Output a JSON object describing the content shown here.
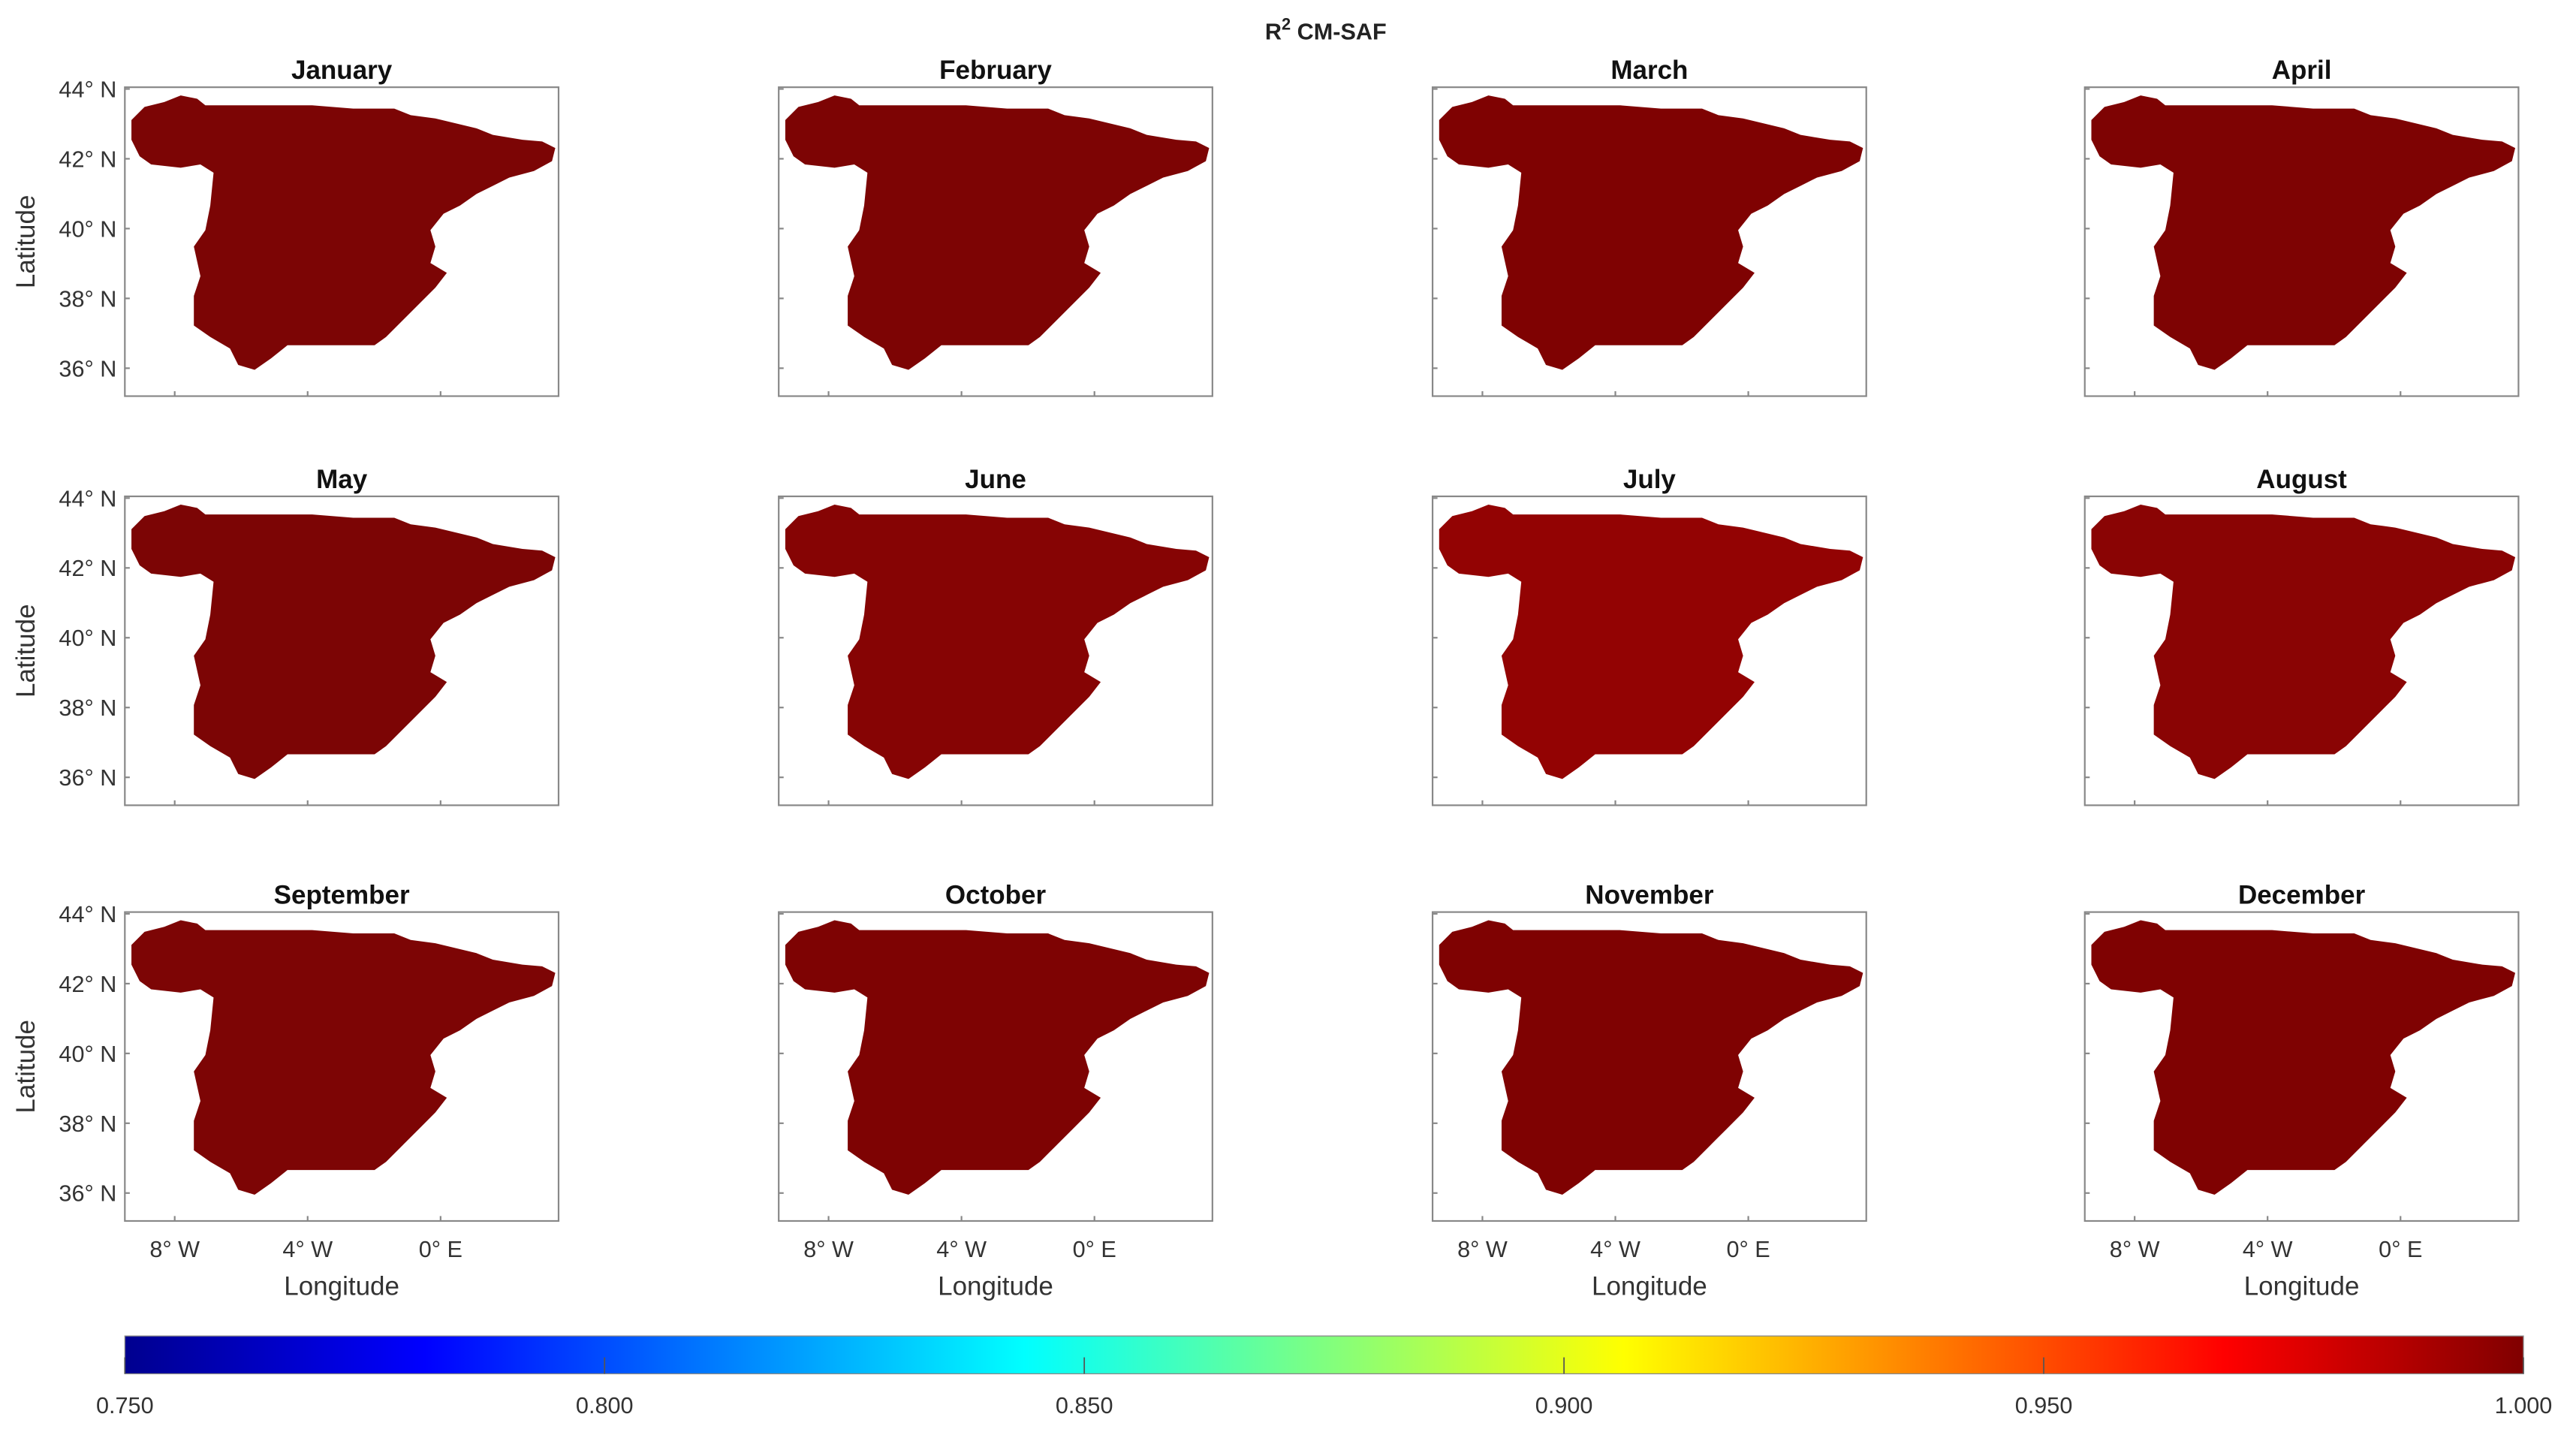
{
  "title": {
    "base": "R",
    "superscript": "2",
    "rest": " CM-SAF"
  },
  "map": {
    "xlim": [
      -9.5,
      3.55
    ],
    "ylim": [
      35.2,
      44.05
    ],
    "xticks": [
      {
        "value": -8,
        "label": "8° W"
      },
      {
        "value": -4,
        "label": "4° W"
      },
      {
        "value": 0,
        "label": "0° E"
      }
    ],
    "yticks": [
      {
        "value": 36,
        "label": "36° N"
      },
      {
        "value": 38,
        "label": "38° N"
      },
      {
        "value": 40,
        "label": "40° N"
      },
      {
        "value": 42,
        "label": "42° N"
      },
      {
        "value": 44,
        "label": "44° N"
      }
    ],
    "x_label": "Longitude",
    "y_label": "Latitude"
  },
  "panels": [
    {
      "title": "January",
      "color": "#7c0505"
    },
    {
      "title": "February",
      "color": "#7d0404"
    },
    {
      "title": "March",
      "color": "#7f0202"
    },
    {
      "title": "April",
      "color": "#7e0303"
    },
    {
      "title": "May",
      "color": "#7c0505"
    },
    {
      "title": "June",
      "color": "#860404"
    },
    {
      "title": "July",
      "color": "#930303"
    },
    {
      "title": "August",
      "color": "#8a0404"
    },
    {
      "title": "September",
      "color": "#7d0505"
    },
    {
      "title": "October",
      "color": "#7e0303"
    },
    {
      "title": "November",
      "color": "#7f0202"
    },
    {
      "title": "December",
      "color": "#7f0202"
    }
  ],
  "colorbar": {
    "lim": [
      0.75,
      1
    ],
    "ticks": [
      {
        "value": 0.75,
        "label": "0.750"
      },
      {
        "value": 0.8,
        "label": "0.800"
      },
      {
        "value": 0.85,
        "label": "0.850"
      },
      {
        "value": 0.9,
        "label": "0.900"
      },
      {
        "value": 0.95,
        "label": "0.950"
      },
      {
        "value": 1,
        "label": "1.000"
      }
    ]
  }
}
